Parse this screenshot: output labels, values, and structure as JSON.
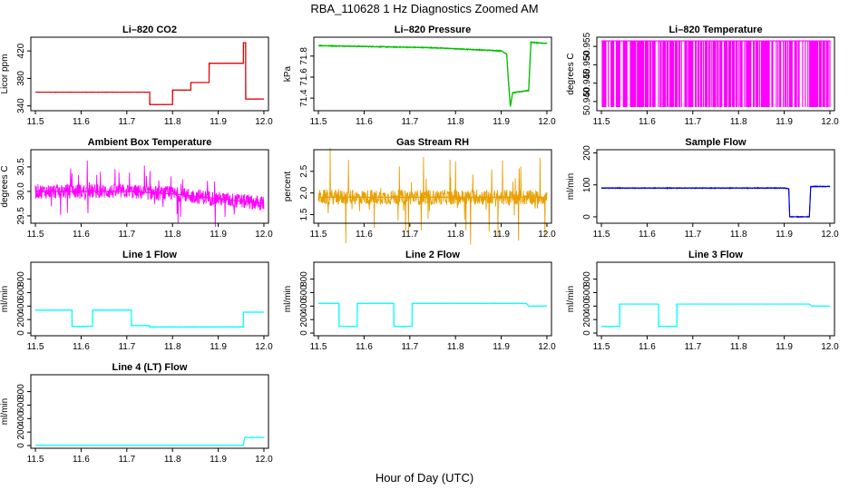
{
  "figure": {
    "title": "RBA_110628 1 Hz Diagnostics Zoomed AM",
    "xlabel": "Hour of Day (UTC)"
  },
  "colors": {
    "co2": "#e00000",
    "pressure": "#00c000",
    "temperature": "#ff00ff",
    "box_temp": "#ff00ff",
    "rh": "#e8a000",
    "sample_flow": "#0000e0",
    "line_flow": "#00ffff"
  },
  "chart_data": [
    {
      "id": "co2",
      "type": "line",
      "title": "Li–820 CO2",
      "ylabel": "Licor ppm",
      "xlim": [
        11.49,
        12.01
      ],
      "ylim": [
        333,
        440
      ],
      "xticks": [
        11.5,
        11.6,
        11.7,
        11.8,
        11.9,
        12.0
      ],
      "xticklabels": [
        "11.5",
        "11.6",
        "11.7",
        "11.8",
        "11.9",
        "12.0"
      ],
      "yticks": [
        340,
        380,
        420
      ],
      "yticklabels": [
        "340",
        "380",
        "420"
      ],
      "color": "co2",
      "noise": 0.6,
      "series": [
        {
          "x": [
            11.5,
            11.75,
            11.75,
            11.8,
            11.8,
            11.84,
            11.84,
            11.88,
            11.88,
            11.955,
            11.955,
            11.96,
            11.96,
            12.0
          ],
          "y": [
            360,
            360,
            342,
            342,
            363,
            363,
            374,
            374,
            402,
            402,
            432,
            432,
            350,
            350
          ]
        }
      ]
    },
    {
      "id": "pressure",
      "type": "line",
      "title": "Li–820 Pressure",
      "ylabel": "kPa",
      "xlim": [
        11.49,
        12.01
      ],
      "ylim": [
        71.28,
        71.98
      ],
      "xticks": [
        11.5,
        11.6,
        11.7,
        11.8,
        11.9,
        12.0
      ],
      "xticklabels": [
        "11.5",
        "11.6",
        "11.7",
        "11.8",
        "11.9",
        "12.0"
      ],
      "yticks": [
        71.4,
        71.6,
        71.8
      ],
      "yticklabels": [
        "71.4",
        "71.6",
        "71.8"
      ],
      "color": "pressure",
      "noise": 0.008,
      "series": [
        {
          "x": [
            11.5,
            11.75,
            11.9,
            11.912,
            11.916,
            11.92,
            11.925,
            11.955,
            11.96,
            11.965,
            11.97,
            12.0
          ],
          "y": [
            71.9,
            71.88,
            71.85,
            71.82,
            71.55,
            71.32,
            71.45,
            71.47,
            71.47,
            71.93,
            71.93,
            71.92
          ]
        }
      ]
    },
    {
      "id": "temperature",
      "type": "line",
      "title": "Li–820 Temperature",
      "ylabel": "degrees C",
      "xlim": [
        11.49,
        12.01
      ],
      "ylim": [
        50.9375,
        50.9575
      ],
      "xticks": [
        11.5,
        11.6,
        11.7,
        11.8,
        11.9,
        12.0
      ],
      "xticklabels": [
        "11.5",
        "11.6",
        "11.7",
        "11.8",
        "11.9",
        "12.0"
      ],
      "yticks": [
        50.94,
        50.945,
        50.95,
        50.955
      ],
      "yticklabels": [
        "50.940",
        "50.945",
        "50.950",
        "50.955"
      ],
      "color": "temperature",
      "digital": [
        50.9385,
        50.9565
      ]
    },
    {
      "id": "box_temp",
      "type": "line",
      "title": "Ambient Box Temperature",
      "ylabel": "degrees C",
      "xlim": [
        11.49,
        12.01
      ],
      "ylim": [
        29.35,
        30.85
      ],
      "xticks": [
        11.5,
        11.6,
        11.7,
        11.8,
        11.9,
        12.0
      ],
      "xticklabels": [
        "11.5",
        "11.6",
        "11.7",
        "11.8",
        "11.9",
        "12.0"
      ],
      "yticks": [
        29.5,
        30.0,
        30.5
      ],
      "yticklabels": [
        "29.5",
        "30.0",
        "30.5"
      ],
      "color": "box_temp",
      "noise": 0.3,
      "spike": 0.55,
      "series": [
        {
          "x": [
            11.5,
            11.7,
            11.8,
            11.9,
            12.0
          ],
          "y": [
            30.0,
            30.0,
            29.95,
            29.85,
            29.75
          ]
        }
      ]
    },
    {
      "id": "rh",
      "type": "line",
      "title": "Gas Stream RH",
      "ylabel": "percent",
      "xlim": [
        11.49,
        12.01
      ],
      "ylim": [
        1.3,
        3.0
      ],
      "xticks": [
        11.5,
        11.6,
        11.7,
        11.8,
        11.9,
        12.0
      ],
      "xticklabels": [
        "11.5",
        "11.6",
        "11.7",
        "11.8",
        "11.9",
        "12.0"
      ],
      "yticks": [
        1.5,
        2.0,
        2.5
      ],
      "yticklabels": [
        "1.5",
        "2.0",
        "2.5"
      ],
      "color": "rh",
      "noise": 0.35,
      "spike": 1.0,
      "series": [
        {
          "x": [
            11.5,
            12.0
          ],
          "y": [
            1.9,
            1.9
          ]
        }
      ]
    },
    {
      "id": "sample_flow",
      "type": "line",
      "title": "Sample Flow",
      "ylabel": "ml/min",
      "xlim": [
        11.49,
        12.01
      ],
      "ylim": [
        -20,
        210
      ],
      "xticks": [
        11.5,
        11.6,
        11.7,
        11.8,
        11.9,
        12.0
      ],
      "xticklabels": [
        "11.5",
        "11.6",
        "11.7",
        "11.8",
        "11.9",
        "12.0"
      ],
      "yticks": [
        0,
        100,
        200
      ],
      "yticklabels": [
        "0",
        "100",
        "200"
      ],
      "color": "sample_flow",
      "noise": 3,
      "series": [
        {
          "x": [
            11.5,
            11.9,
            11.91,
            11.912,
            11.955,
            11.958,
            11.96,
            12.0
          ],
          "y": [
            90,
            90,
            88,
            0,
            0,
            95,
            95,
            95
          ]
        }
      ]
    },
    {
      "id": "line1",
      "type": "line",
      "title": "Line 1 Flow",
      "ylabel": "ml/min",
      "xlim": [
        11.49,
        12.01
      ],
      "ylim": [
        -40,
        1050
      ],
      "xticks": [
        11.5,
        11.6,
        11.7,
        11.8,
        11.9,
        12.0
      ],
      "xticklabels": [
        "11.5",
        "11.6",
        "11.7",
        "11.8",
        "11.9",
        "12.0"
      ],
      "yticks": [
        0,
        200,
        400,
        600,
        800
      ],
      "yticklabels": [
        "0",
        "200",
        "400",
        "600",
        "800"
      ],
      "color": "line_flow",
      "noise": 8,
      "series": [
        {
          "x": [
            11.5,
            11.58,
            11.58,
            11.625,
            11.625,
            11.71,
            11.71,
            11.75,
            11.75,
            11.955,
            11.955,
            12.0
          ],
          "y": [
            340,
            340,
            100,
            100,
            340,
            340,
            110,
            110,
            90,
            90,
            310,
            310
          ]
        }
      ]
    },
    {
      "id": "line2",
      "type": "line",
      "title": "Line 2 Flow",
      "ylabel": "ml/min",
      "xlim": [
        11.49,
        12.01
      ],
      "ylim": [
        -40,
        1050
      ],
      "xticks": [
        11.5,
        11.6,
        11.7,
        11.8,
        11.9,
        12.0
      ],
      "xticklabels": [
        "11.5",
        "11.6",
        "11.7",
        "11.8",
        "11.9",
        "12.0"
      ],
      "yticks": [
        0,
        200,
        400,
        600,
        800
      ],
      "yticklabels": [
        "0",
        "200",
        "400",
        "600",
        "800"
      ],
      "color": "line_flow",
      "noise": 5,
      "series": [
        {
          "x": [
            11.5,
            11.545,
            11.545,
            11.585,
            11.585,
            11.665,
            11.665,
            11.705,
            11.705,
            11.955,
            11.96,
            12.0
          ],
          "y": [
            440,
            440,
            100,
            100,
            440,
            440,
            100,
            100,
            440,
            440,
            400,
            400
          ]
        }
      ]
    },
    {
      "id": "line3",
      "type": "line",
      "title": "Line 3 Flow",
      "ylabel": "ml/min",
      "xlim": [
        11.49,
        12.01
      ],
      "ylim": [
        -40,
        1050
      ],
      "xticks": [
        11.5,
        11.6,
        11.7,
        11.8,
        11.9,
        12.0
      ],
      "xticklabels": [
        "11.5",
        "11.6",
        "11.7",
        "11.8",
        "11.9",
        "12.0"
      ],
      "yticks": [
        0,
        200,
        400,
        600,
        800
      ],
      "yticklabels": [
        "0",
        "200",
        "400",
        "600",
        "800"
      ],
      "color": "line_flow",
      "noise": 5,
      "series": [
        {
          "x": [
            11.5,
            11.54,
            11.54,
            11.625,
            11.625,
            11.665,
            11.665,
            11.955,
            11.96,
            12.0
          ],
          "y": [
            100,
            100,
            430,
            430,
            100,
            100,
            430,
            430,
            400,
            400
          ]
        }
      ]
    },
    {
      "id": "line4",
      "type": "line",
      "title": "Line 4 (LT) Flow",
      "ylabel": "ml/min",
      "xlim": [
        11.49,
        12.01
      ],
      "ylim": [
        -40,
        1050
      ],
      "xticks": [
        11.5,
        11.6,
        11.7,
        11.8,
        11.9,
        12.0
      ],
      "xticklabels": [
        "11.5",
        "11.6",
        "11.7",
        "11.8",
        "11.9",
        "12.0"
      ],
      "yticks": [
        0,
        200,
        400,
        600,
        800
      ],
      "yticklabels": [
        "0",
        "200",
        "400",
        "600",
        "800"
      ],
      "color": "line_flow",
      "noise": 1.5,
      "series": [
        {
          "x": [
            11.5,
            11.955,
            11.958,
            12.0
          ],
          "y": [
            5,
            5,
            120,
            120
          ]
        }
      ]
    }
  ]
}
